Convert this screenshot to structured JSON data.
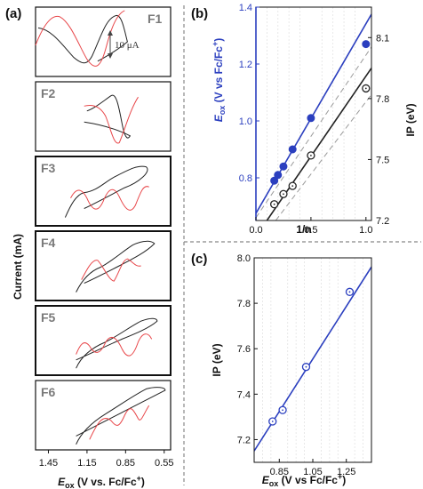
{
  "figure": {
    "panel_a_label": "(a)",
    "panel_b_label": "(b)",
    "panel_c_label": "(c)",
    "scale_bar_label": "10 μA",
    "panel_a_ylabel": "Current (mA)",
    "panel_a_xlabel_main": "E",
    "panel_a_xlabel_sub": "ox",
    "panel_a_xlabel_rest": " (V vs. Fc/Fc",
    "panel_a_xlabel_sup": "+",
    "panel_a_xlabel_end": ")",
    "panel_a_xticks": [
      "1.45",
      "1.15",
      "0.85",
      "0.55"
    ],
    "colors": {
      "blue": "#2b3fbf",
      "red": "#e8474a",
      "black": "#222222",
      "gray_label": "#7a7a7a"
    }
  },
  "chart_data": [
    {
      "type": "line",
      "panel": "a",
      "series_labels": [
        "F1",
        "F2",
        "F3",
        "F4",
        "F5",
        "F6"
      ],
      "xlabel": "Eox (V vs. Fc/Fc+)",
      "ylabel": "Current (mA)",
      "xlim": [
        1.55,
        0.5
      ],
      "x_ticks": [
        1.45,
        1.15,
        0.85,
        0.55
      ],
      "colors": [
        "#222222",
        "#e8474a"
      ]
    },
    {
      "type": "scatter",
      "panel": "b",
      "xlabel": "1/n",
      "ylabel_left": "Eox (V vs Fc/Fc+)",
      "ylabel_right": "IP (eV)",
      "xlim": [
        0,
        1.05
      ],
      "ylim_left": [
        0.65,
        1.4
      ],
      "ylim_right": [
        7.2,
        8.25
      ],
      "x_ticks": [
        "0.0",
        "0.5",
        "1.0"
      ],
      "y_ticks_left": [
        "0.8",
        "1.0",
        "1.2",
        "1.4"
      ],
      "y_ticks_right": [
        "7.2",
        "7.5",
        "7.8",
        "8.1"
      ],
      "series": [
        {
          "axis": "left",
          "color": "#2b3fbf",
          "marker": "filled",
          "points": [
            [
              0.1667,
              0.79
            ],
            [
              0.2,
              0.81
            ],
            [
              0.25,
              0.84
            ],
            [
              0.333,
              0.9
            ],
            [
              0.5,
              1.01
            ],
            [
              1.0,
              1.27
            ]
          ],
          "fit": [
            [
              0.0,
              0.675
            ],
            [
              1.05,
              1.375
            ]
          ],
          "fit_dashed": [
            [
              0.0,
              0.66
            ],
            [
              1.05,
              1.26
            ]
          ]
        },
        {
          "axis": "right",
          "color": "#222222",
          "marker": "open",
          "points": [
            [
              0.1667,
              7.28
            ],
            [
              0.25,
              7.33
            ],
            [
              0.333,
              7.37
            ],
            [
              0.5,
              7.52
            ],
            [
              1.0,
              7.85
            ]
          ],
          "fit": [
            [
              0.1,
              7.2
            ],
            [
              1.05,
              7.95
            ]
          ],
          "fit_dashed": [
            [
              0.18,
              7.2
            ],
            [
              1.05,
              7.82
            ]
          ]
        }
      ]
    },
    {
      "type": "scatter",
      "panel": "c",
      "xlabel": "Eox (V vs Fc/Fc+)",
      "ylabel": "IP (eV)",
      "xlim": [
        0.7,
        1.4
      ],
      "ylim": [
        7.1,
        8.0
      ],
      "x_ticks": [
        "0.85",
        "1.05",
        "1.25"
      ],
      "y_ticks": [
        "7.2",
        "7.4",
        "7.6",
        "7.8",
        "8.0"
      ],
      "points": [
        [
          0.81,
          7.28
        ],
        [
          0.87,
          7.33
        ],
        [
          1.01,
          7.52
        ],
        [
          1.27,
          7.85
        ]
      ],
      "fit": [
        [
          0.7,
          7.15
        ],
        [
          1.4,
          7.96
        ]
      ],
      "color": "#2b3fbf"
    }
  ],
  "axis_b": {
    "xlabel": "1/n",
    "ylabel_left_main": "E",
    "ylabel_left_sub": "ox",
    "ylabel_left_rest": " (V vs Fc/Fc",
    "ylabel_left_sup": "+",
    "ylabel_left_end": ")",
    "ylabel_right": "IP (eV)"
  },
  "axis_c": {
    "xlabel_main": "E",
    "xlabel_sub": "ox",
    "xlabel_rest": " (V vs Fc/Fc",
    "xlabel_sup": "+",
    "xlabel_end": ")",
    "ylabel": "IP (eV)"
  }
}
